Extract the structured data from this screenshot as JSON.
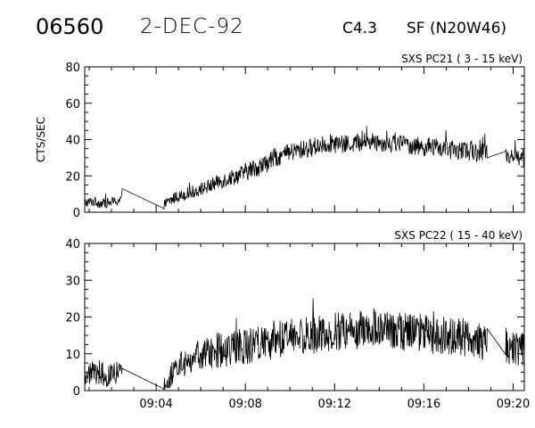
{
  "header": {
    "event_id": "06560",
    "date": "2-DEC-92",
    "flare_class": "C4.3",
    "location": "SF (N20W46)"
  },
  "chart_data": [
    {
      "type": "line",
      "title": "SXS PC21  (  3 - 15 keV)",
      "ylabel": "CTS/SEC",
      "xlabel": "",
      "ylim": [
        0,
        80
      ],
      "yticks": [
        0,
        20,
        40,
        60,
        80
      ],
      "xlim": [
        "09:00:48",
        "09:20:30"
      ],
      "xticks": [
        "09:04",
        "09:08",
        "09:12",
        "09:16",
        "09:20"
      ],
      "grid": false,
      "series": [
        {
          "x": [
            "09:00:48",
            "09:01:10",
            "09:01:30",
            "09:01:50",
            "09:02:10",
            "09:02:30",
            "09:04:20",
            "09:04:50",
            "09:05:20",
            "09:05:50",
            "09:06:20",
            "09:06:50",
            "09:07:20",
            "09:07:50",
            "09:08:20",
            "09:08:50",
            "09:09:20",
            "09:09:50",
            "09:10:20",
            "09:10:50",
            "09:11:20",
            "09:11:50",
            "09:12:20",
            "09:12:50",
            "09:13:20",
            "09:13:50",
            "09:14:20",
            "09:14:50",
            "09:15:20",
            "09:15:50",
            "09:16:20",
            "09:16:50",
            "09:17:20",
            "09:17:50",
            "09:18:20",
            "09:18:50",
            "09:19:40",
            "09:20:00",
            "09:20:30"
          ],
          "values": [
            5,
            6,
            5,
            5,
            6,
            7,
            4,
            8,
            10,
            12,
            14,
            17,
            19,
            21,
            24,
            26,
            30,
            32,
            34,
            35,
            37,
            38,
            37,
            38,
            39,
            39,
            38,
            38,
            37,
            36,
            36,
            35,
            34,
            34,
            33,
            34,
            32,
            31,
            30
          ]
        }
      ]
    },
    {
      "type": "line",
      "title": "SXS PC22  ( 15 - 40 keV)",
      "ylabel": "",
      "xlabel": "",
      "ylim": [
        0,
        40
      ],
      "yticks": [
        0,
        10,
        20,
        30,
        40
      ],
      "xlim": [
        "09:00:48",
        "09:20:30"
      ],
      "xticks": [
        "09:04",
        "09:08",
        "09:12",
        "09:16",
        "09:20"
      ],
      "grid": false,
      "series": [
        {
          "x": [
            "09:00:48",
            "09:01:10",
            "09:01:30",
            "09:01:50",
            "09:02:10",
            "09:02:30",
            "09:04:20",
            "09:04:50",
            "09:05:20",
            "09:05:50",
            "09:06:20",
            "09:06:50",
            "09:07:20",
            "09:07:50",
            "09:08:20",
            "09:08:50",
            "09:09:20",
            "09:09:50",
            "09:10:20",
            "09:10:50",
            "09:11:20",
            "09:11:50",
            "09:12:20",
            "09:12:50",
            "09:13:20",
            "09:13:50",
            "09:14:20",
            "09:14:50",
            "09:15:20",
            "09:15:50",
            "09:16:20",
            "09:16:50",
            "09:17:20",
            "09:17:50",
            "09:18:20",
            "09:18:50",
            "09:19:40",
            "09:20:00",
            "09:20:30"
          ],
          "values": [
            4,
            5,
            5,
            4,
            5,
            5,
            1,
            6,
            8,
            9,
            10,
            11,
            11,
            12,
            12,
            13,
            14,
            14,
            15,
            15,
            15,
            16,
            16,
            16,
            17,
            17,
            17,
            16,
            16,
            16,
            15,
            15,
            15,
            14,
            14,
            13,
            12,
            11,
            11
          ]
        }
      ]
    }
  ]
}
